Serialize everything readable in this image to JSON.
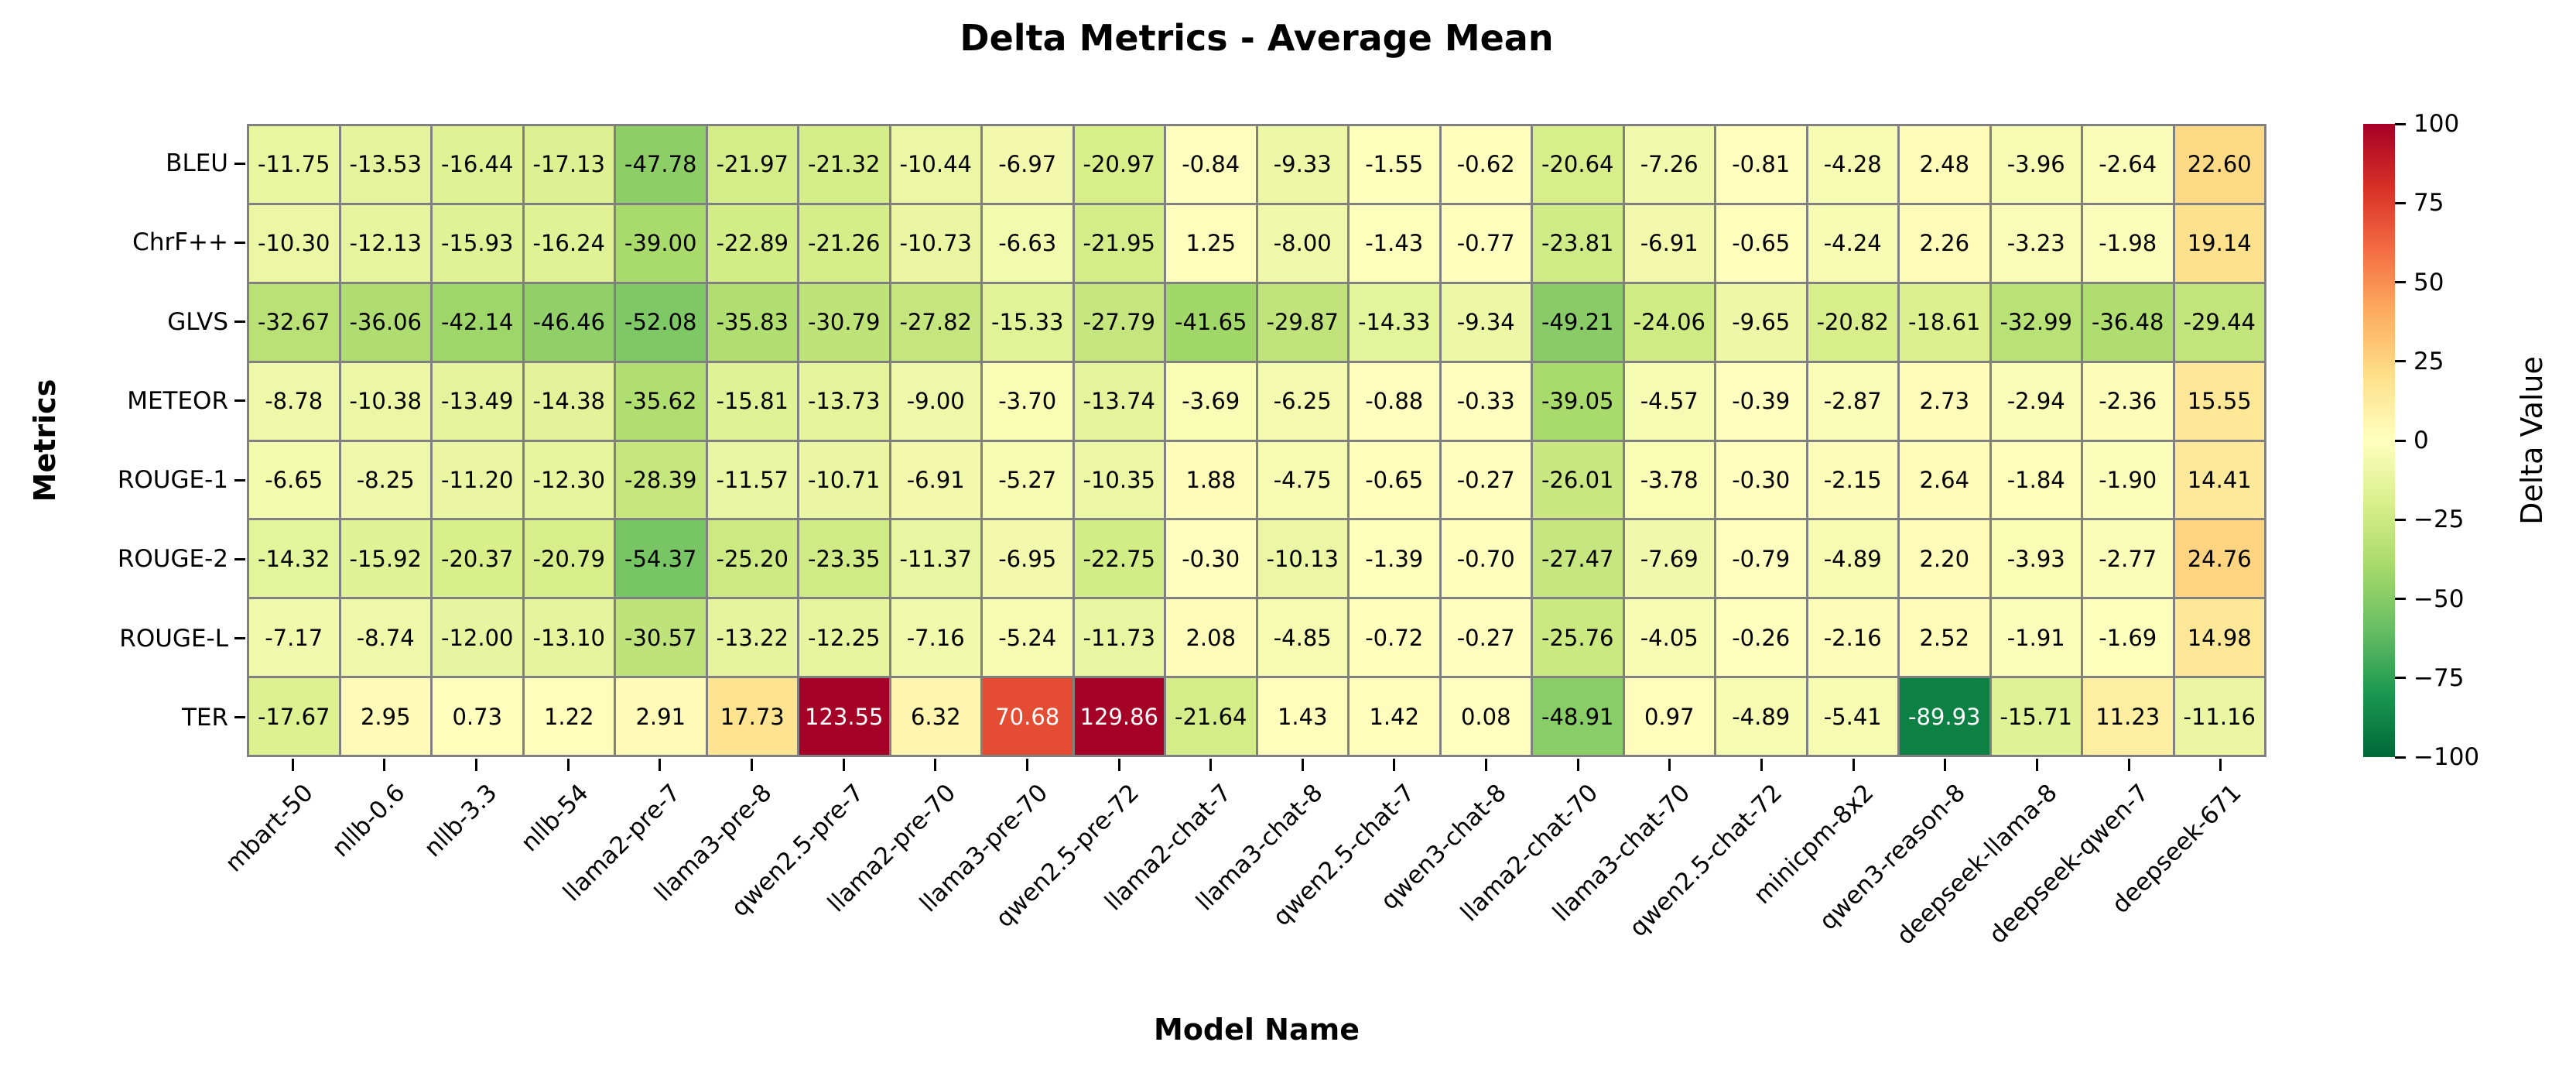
{
  "title": "Delta Metrics - Average Mean",
  "x_axis_label": "Model Name",
  "y_axis_label": "Metrics",
  "colorbar": {
    "label": "Delta Value",
    "tick_labels": [
      "100",
      "75",
      "50",
      "25",
      "0",
      "−25",
      "−50",
      "−75",
      "−100"
    ],
    "tick_values": [
      100,
      75,
      50,
      25,
      0,
      -25,
      -50,
      -75,
      -100
    ],
    "vmin": -100,
    "vmax": 100,
    "gradient_top_to_bottom": [
      "#a50026",
      "#d73027",
      "#f46d43",
      "#fdae61",
      "#fee08b",
      "#ffffbf",
      "#d9ef8b",
      "#a6d96a",
      "#66bd63",
      "#1a9850",
      "#006837"
    ]
  },
  "grid_line_color": "#808080",
  "cell_text_dark": "#000000",
  "cell_text_light": "#ffffff",
  "chart_data": {
    "type": "heatmap",
    "title": "Delta Metrics - Average Mean",
    "xlabel": "Model Name",
    "ylabel": "Metrics",
    "colormap": "RdYlGn_r",
    "vmin": -100,
    "vmax": 100,
    "legend_position": "right-colorbar",
    "columns": [
      "mbart-50",
      "nllb-0.6",
      "nllb-3.3",
      "nllb-54",
      "llama2-pre-7",
      "llama3-pre-8",
      "qwen2.5-pre-7",
      "llama2-pre-70",
      "llama3-pre-70",
      "qwen2.5-pre-72",
      "llama2-chat-7",
      "llama3-chat-8",
      "qwen2.5-chat-7",
      "qwen3-chat-8",
      "llama2-chat-70",
      "llama3-chat-70",
      "qwen2.5-chat-72",
      "minicpm-8x2",
      "qwen3-reason-8",
      "deepseek-llama-8",
      "deepseek-qwen-7",
      "deepseek-671"
    ],
    "rows": [
      "BLEU",
      "ChrF++",
      "GLVS",
      "METEOR",
      "ROUGE-1",
      "ROUGE-2",
      "ROUGE-L",
      "TER"
    ],
    "values": [
      [
        -11.75,
        -13.53,
        -16.44,
        -17.13,
        -47.78,
        -21.97,
        -21.32,
        -10.44,
        -6.97,
        -20.97,
        -0.84,
        -9.33,
        -1.55,
        -0.62,
        -20.64,
        -7.26,
        -0.81,
        -4.28,
        2.48,
        -3.96,
        -2.64,
        22.6
      ],
      [
        -10.3,
        -12.13,
        -15.93,
        -16.24,
        -39.0,
        -22.89,
        -21.26,
        -10.73,
        -6.63,
        -21.95,
        1.25,
        -8.0,
        -1.43,
        -0.77,
        -23.81,
        -6.91,
        -0.65,
        -4.24,
        2.26,
        -3.23,
        -1.98,
        19.14
      ],
      [
        -32.67,
        -36.06,
        -42.14,
        -46.46,
        -52.08,
        -35.83,
        -30.79,
        -27.82,
        -15.33,
        -27.79,
        -41.65,
        -29.87,
        -14.33,
        -9.34,
        -49.21,
        -24.06,
        -9.65,
        -20.82,
        -18.61,
        -32.99,
        -36.48,
        -29.44
      ],
      [
        -8.78,
        -10.38,
        -13.49,
        -14.38,
        -35.62,
        -15.81,
        -13.73,
        -9.0,
        -3.7,
        -13.74,
        -3.69,
        -6.25,
        -0.88,
        -0.33,
        -39.05,
        -4.57,
        -0.39,
        -2.87,
        2.73,
        -2.94,
        -2.36,
        15.55
      ],
      [
        -6.65,
        -8.25,
        -11.2,
        -12.3,
        -28.39,
        -11.57,
        -10.71,
        -6.91,
        -5.27,
        -10.35,
        1.88,
        -4.75,
        -0.65,
        -0.27,
        -26.01,
        -3.78,
        -0.3,
        -2.15,
        2.64,
        -1.84,
        -1.9,
        14.41
      ],
      [
        -14.32,
        -15.92,
        -20.37,
        -20.79,
        -54.37,
        -25.2,
        -23.35,
        -11.37,
        -6.95,
        -22.75,
        -0.3,
        -10.13,
        -1.39,
        -0.7,
        -27.47,
        -7.69,
        -0.79,
        -4.89,
        2.2,
        -3.93,
        -2.77,
        24.76
      ],
      [
        -7.17,
        -8.74,
        -12.0,
        -13.1,
        -30.57,
        -13.22,
        -12.25,
        -7.16,
        -5.24,
        -11.73,
        2.08,
        -4.85,
        -0.72,
        -0.27,
        -25.76,
        -4.05,
        -0.26,
        -2.16,
        2.52,
        -1.91,
        -1.69,
        14.98
      ],
      [
        -17.67,
        2.95,
        0.73,
        1.22,
        2.91,
        17.73,
        123.55,
        6.32,
        70.68,
        129.86,
        -21.64,
        1.43,
        1.42,
        0.08,
        -48.91,
        0.97,
        -4.89,
        -5.41,
        -89.93,
        -15.71,
        11.23,
        -11.16
      ]
    ]
  }
}
